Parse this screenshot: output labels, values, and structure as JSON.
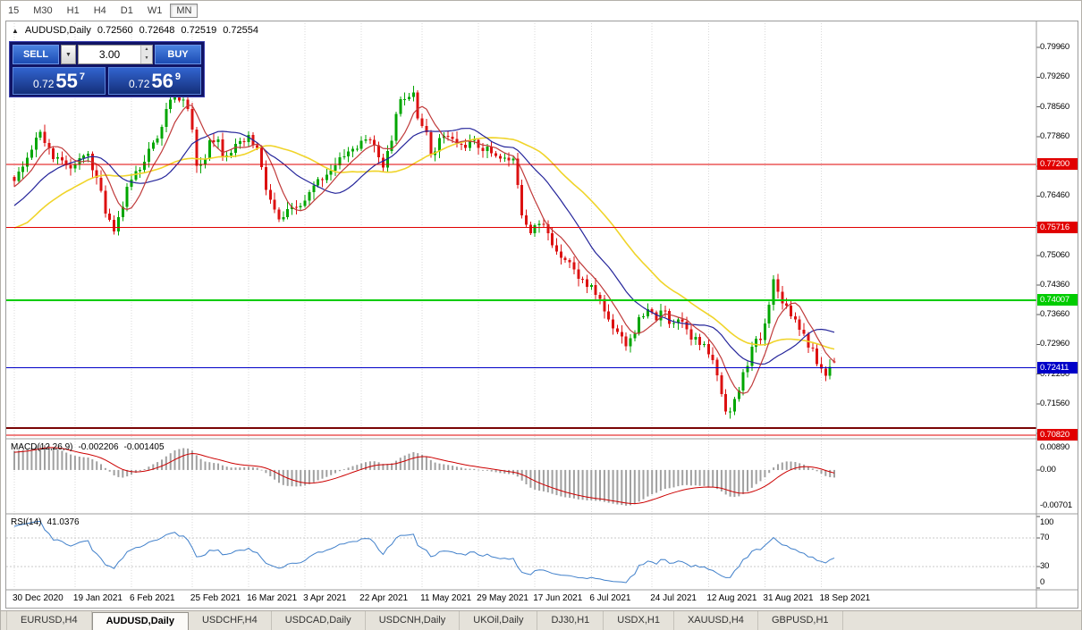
{
  "icons": {
    "symbol_marker": "▲",
    "dropdown_arrow": "▼",
    "spin_up": "▲",
    "spin_down": "▼"
  },
  "toolbar": {
    "timeframes": [
      "15",
      "M30",
      "H1",
      "H4",
      "D1",
      "W1",
      "MN"
    ],
    "active": "MN"
  },
  "chart_header": {
    "symbol": "AUDUSD,Daily",
    "open": "0.72560",
    "high": "0.72648",
    "low": "0.72519",
    "close": "0.72554"
  },
  "trade_panel": {
    "sell_label": "SELL",
    "buy_label": "BUY",
    "volume": "3.00",
    "sell_price": {
      "prefix": "0.72",
      "big": "55",
      "sup": "7"
    },
    "buy_price": {
      "prefix": "0.72",
      "big": "56",
      "sup": "9"
    }
  },
  "tabs": [
    {
      "label": "EURUSD,H4",
      "active": false
    },
    {
      "label": "AUDUSD,Daily",
      "active": true
    },
    {
      "label": "USDCHF,H4",
      "active": false
    },
    {
      "label": "USDCAD,Daily",
      "active": false
    },
    {
      "label": "USDCNH,Daily",
      "active": false
    },
    {
      "label": "UKOil,Daily",
      "active": false
    },
    {
      "label": "DJ30,H1",
      "active": false
    },
    {
      "label": "USDX,H1",
      "active": false
    },
    {
      "label": "XAUUSD,H4",
      "active": false
    },
    {
      "label": "GBPUSD,H1",
      "active": false
    }
  ],
  "chart_data": {
    "type": "candlestick",
    "symbol": "AUDUSD",
    "timeframe": "Daily",
    "candle_count": 190,
    "seed": 11,
    "warmup": {
      "count": 30,
      "start_price": 0.745
    },
    "last_candle": [
      0.7256,
      0.72648,
      0.72519,
      0.72554
    ],
    "price_path": [
      [
        0,
        0.769
      ],
      [
        3,
        0.7726
      ],
      [
        5,
        0.778
      ],
      [
        6,
        0.7792
      ],
      [
        7,
        0.7768
      ],
      [
        9,
        0.773
      ],
      [
        11,
        0.7736
      ],
      [
        13,
        0.7718
      ],
      [
        14,
        0.7716
      ],
      [
        16,
        0.7738
      ],
      [
        17,
        0.7746
      ],
      [
        19,
        0.7686
      ],
      [
        21,
        0.7612
      ],
      [
        23,
        0.7572
      ],
      [
        25,
        0.7624
      ],
      [
        27,
        0.769
      ],
      [
        29,
        0.7716
      ],
      [
        31,
        0.7754
      ],
      [
        33,
        0.7776
      ],
      [
        35,
        0.7848
      ],
      [
        37,
        0.7886
      ],
      [
        39,
        0.7872
      ],
      [
        40,
        0.785
      ],
      [
        41,
        0.7802
      ],
      [
        42,
        0.7706
      ],
      [
        44,
        0.7736
      ],
      [
        45,
        0.7786
      ],
      [
        47,
        0.7778
      ],
      [
        48,
        0.7746
      ],
      [
        50,
        0.7756
      ],
      [
        52,
        0.7764
      ],
      [
        54,
        0.778
      ],
      [
        56,
        0.7756
      ],
      [
        58,
        0.7662
      ],
      [
        60,
        0.7608
      ],
      [
        61,
        0.7586
      ],
      [
        63,
        0.7606
      ],
      [
        65,
        0.7618
      ],
      [
        67,
        0.763
      ],
      [
        68,
        0.765
      ],
      [
        70,
        0.768
      ],
      [
        72,
        0.7702
      ],
      [
        74,
        0.7716
      ],
      [
        76,
        0.7744
      ],
      [
        78,
        0.7756
      ],
      [
        80,
        0.7768
      ],
      [
        82,
        0.7788
      ],
      [
        83,
        0.7756
      ],
      [
        85,
        0.7724
      ],
      [
        87,
        0.7766
      ],
      [
        88,
        0.7848
      ],
      [
        90,
        0.7884
      ],
      [
        92,
        0.7896
      ],
      [
        93,
        0.784
      ],
      [
        95,
        0.7788
      ],
      [
        96,
        0.7746
      ],
      [
        98,
        0.7776
      ],
      [
        99,
        0.7788
      ],
      [
        101,
        0.7776
      ],
      [
        103,
        0.7764
      ],
      [
        105,
        0.777
      ],
      [
        107,
        0.7766
      ],
      [
        109,
        0.7754
      ],
      [
        111,
        0.7744
      ],
      [
        113,
        0.7734
      ],
      [
        115,
        0.7724
      ],
      [
        116,
        0.768
      ],
      [
        117,
        0.7608
      ],
      [
        119,
        0.7564
      ],
      [
        120,
        0.7586
      ],
      [
        122,
        0.7574
      ],
      [
        123,
        0.7554
      ],
      [
        124,
        0.7532
      ],
      [
        126,
        0.751
      ],
      [
        128,
        0.749
      ],
      [
        129,
        0.7468
      ],
      [
        131,
        0.7446
      ],
      [
        133,
        0.7426
      ],
      [
        135,
        0.7404
      ],
      [
        136,
        0.7372
      ],
      [
        138,
        0.734
      ],
      [
        140,
        0.7318
      ],
      [
        141,
        0.7296
      ],
      [
        143,
        0.733
      ],
      [
        144,
        0.735
      ],
      [
        146,
        0.7372
      ],
      [
        148,
        0.736
      ],
      [
        150,
        0.7372
      ],
      [
        151,
        0.735
      ],
      [
        153,
        0.736
      ],
      [
        155,
        0.734
      ],
      [
        156,
        0.7318
      ],
      [
        158,
        0.7296
      ],
      [
        160,
        0.7276
      ],
      [
        161,
        0.7254
      ],
      [
        162,
        0.7226
      ],
      [
        163,
        0.718
      ],
      [
        164,
        0.7148
      ],
      [
        165,
        0.7136
      ],
      [
        166,
        0.716
      ],
      [
        167,
        0.719
      ],
      [
        168,
        0.7224
      ],
      [
        169,
        0.7254
      ],
      [
        170,
        0.7286
      ],
      [
        171,
        0.73
      ],
      [
        172,
        0.7308
      ],
      [
        173,
        0.734
      ],
      [
        174,
        0.74
      ],
      [
        175,
        0.7446
      ],
      [
        176,
        0.7418
      ],
      [
        177,
        0.7404
      ],
      [
        178,
        0.7386
      ],
      [
        179,
        0.737
      ],
      [
        180,
        0.7356
      ],
      [
        181,
        0.734
      ],
      [
        182,
        0.7318
      ],
      [
        183,
        0.7296
      ],
      [
        184,
        0.7276
      ],
      [
        185,
        0.7254
      ],
      [
        186,
        0.724
      ],
      [
        187,
        0.7224
      ],
      [
        188,
        0.7244
      ],
      [
        189,
        0.7255
      ]
    ],
    "price_axis": {
      "min": 0.7078,
      "max": 0.8053,
      "tick_step": 0.007,
      "ticks": [
        0.7996,
        0.7926,
        0.7856,
        0.7786,
        0.7716,
        0.7646,
        0.7576,
        0.7506,
        0.7436,
        0.7366,
        0.7296,
        0.7226,
        0.7156,
        0.7086
      ]
    },
    "colors": {
      "bull": "#00a600",
      "bear": "#dc1111",
      "grid": "#d9d9d9"
    },
    "hlines": [
      {
        "price": 0.772,
        "color": "#e10000",
        "width": 1,
        "badge": true
      },
      {
        "price": 0.75716,
        "color": "#e10000",
        "width": 1,
        "badge": true
      },
      {
        "price": 0.74007,
        "color": "#00cc00",
        "width": 2,
        "badge": true
      },
      {
        "price": 0.72411,
        "color": "#0000c8",
        "width": 1,
        "badge": true
      },
      {
        "price": 0.7099,
        "color": "#7a0505",
        "width": 2,
        "badge": false
      },
      {
        "price": 0.7082,
        "color": "#e10000",
        "width": 1,
        "badge": true
      }
    ],
    "moving_averages": [
      {
        "period": 34,
        "color": "#f0d42a",
        "width": 1.6
      },
      {
        "period": 18,
        "color": "#24249a",
        "width": 1.2
      },
      {
        "period": 7,
        "color": "#c03a3a",
        "width": 1.2
      }
    ],
    "macd": {
      "label": "MACD(12,26,9)",
      "value_main": "-0.002206",
      "value_signal": "-0.001405",
      "fast": 12,
      "slow": 26,
      "signal": 9,
      "hist_color": "#a0a0a0",
      "line_color": "#cc0000",
      "axis_labels": [
        "0.00890",
        "0.00",
        "-0.00701"
      ]
    },
    "rsi": {
      "label": "RSI(14)",
      "value": "41.0376",
      "period": 14,
      "color": "#3f7fca",
      "levels": [
        30,
        70
      ],
      "axis_labels": [
        "100",
        "70",
        "30",
        "0"
      ]
    },
    "dates": [
      {
        "label": "30 Dec 2020",
        "idx": 0
      },
      {
        "label": "19 Jan 2021",
        "idx": 14
      },
      {
        "label": "6 Feb 2021",
        "idx": 27
      },
      {
        "label": "25 Feb 2021",
        "idx": 41
      },
      {
        "label": "16 Mar 2021",
        "idx": 54
      },
      {
        "label": "3 Apr 2021",
        "idx": 67
      },
      {
        "label": "22 Apr 2021",
        "idx": 80
      },
      {
        "label": "11 May 2021",
        "idx": 94
      },
      {
        "label": "29 May 2021",
        "idx": 107
      },
      {
        "label": "17 Jun 2021",
        "idx": 120
      },
      {
        "label": "6 Jul 2021",
        "idx": 133
      },
      {
        "label": "24 Jul 2021",
        "idx": 147
      },
      {
        "label": "12 Aug 2021",
        "idx": 160
      },
      {
        "label": "31 Aug 2021",
        "idx": 173
      },
      {
        "label": "18 Sep 2021",
        "idx": 186
      }
    ]
  }
}
